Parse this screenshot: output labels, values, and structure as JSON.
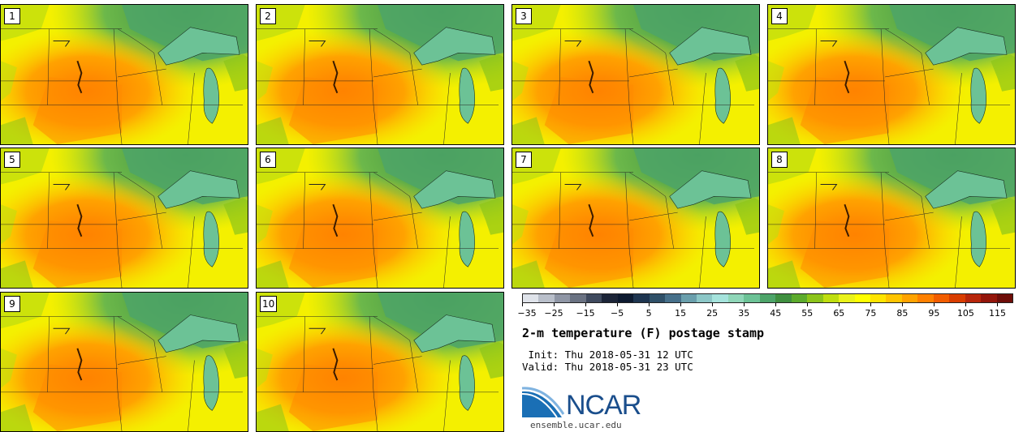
{
  "panels": [
    {
      "number": "1"
    },
    {
      "number": "2"
    },
    {
      "number": "3"
    },
    {
      "number": "4"
    },
    {
      "number": "5"
    },
    {
      "number": "6"
    },
    {
      "number": "7"
    },
    {
      "number": "8"
    },
    {
      "number": "9"
    },
    {
      "number": "10"
    }
  ],
  "colorbar": {
    "colors": [
      "#dfe3ea",
      "#b9bfca",
      "#8f96a5",
      "#6a7282",
      "#3f4a5e",
      "#1c2538",
      "#0d1a30",
      "#1e3550",
      "#2f5068",
      "#47708a",
      "#6a9fac",
      "#8cc7c7",
      "#a5e3dc",
      "#8fd6b8",
      "#6cc296",
      "#4da469",
      "#3f8f3f",
      "#5cab2c",
      "#8cc41a",
      "#bfde0f",
      "#eaf21a",
      "#ffff00",
      "#ffe400",
      "#ffc400",
      "#ffa300",
      "#ff8000",
      "#f25d00",
      "#d93d00",
      "#b8260b",
      "#93150a",
      "#6e0d08"
    ],
    "tick_labels": [
      "−35",
      "−25",
      "−15",
      "−5",
      "5",
      "15",
      "25",
      "35",
      "45",
      "55",
      "65",
      "75",
      "85",
      "95",
      "105",
      "115"
    ]
  },
  "title": "2-m temperature (F) postage stamp",
  "init": " Init: Thu 2018-05-31 12 UTC",
  "valid": "Valid: Thu 2018-05-31 23 UTC",
  "logo": {
    "text": "NCAR",
    "brand_color": "#1a4e8c"
  },
  "site": "ensemble.ucar.edu"
}
